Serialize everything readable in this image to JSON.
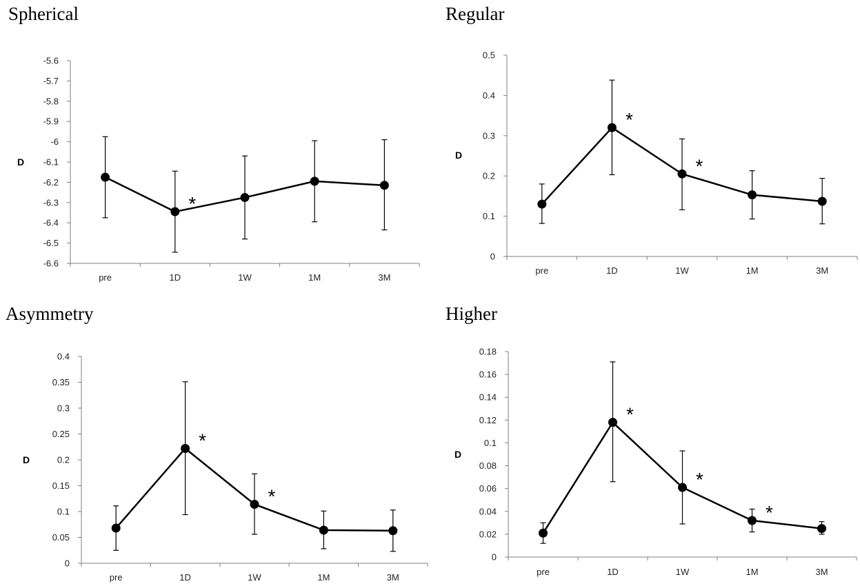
{
  "chart_data": [
    {
      "type": "line",
      "title": "Spherical",
      "ylabel": "D",
      "categories": [
        "pre",
        "1D",
        "1W",
        "1M",
        "3M"
      ],
      "values": [
        -6.175,
        -6.345,
        -6.275,
        -6.195,
        -6.215
      ],
      "error_low": [
        -6.375,
        -6.545,
        -6.48,
        -6.395,
        -6.435
      ],
      "error_high": [
        -5.975,
        -6.145,
        -6.07,
        -5.995,
        -5.99
      ],
      "significant": [
        false,
        true,
        false,
        false,
        false
      ],
      "annotation": "*",
      "ylim": [
        -6.6,
        -5.6
      ],
      "yticks": [
        "-5.6",
        "-5.7",
        "-5.8",
        "-5.9",
        "-6",
        "-6.1",
        "-6.2",
        "-6.3",
        "-6.4",
        "-6.5",
        "-6.6"
      ],
      "ytick_values": [
        -5.6,
        -5.7,
        -5.8,
        -5.9,
        -6.0,
        -6.1,
        -6.2,
        -6.3,
        -6.4,
        -6.5,
        -6.6
      ]
    },
    {
      "type": "line",
      "title": "Regular",
      "ylabel": "D",
      "categories": [
        "pre",
        "1D",
        "1W",
        "1M",
        "3M"
      ],
      "values": [
        0.13,
        0.32,
        0.205,
        0.153,
        0.137
      ],
      "error_low": [
        0.082,
        0.203,
        0.116,
        0.093,
        0.081
      ],
      "error_high": [
        0.18,
        0.438,
        0.292,
        0.213,
        0.194
      ],
      "significant": [
        false,
        true,
        true,
        false,
        false
      ],
      "annotation": "*",
      "ylim": [
        0,
        0.5
      ],
      "yticks": [
        "0",
        "0.1",
        "0.2",
        "0.3",
        "0.4",
        "0.5"
      ],
      "ytick_values": [
        0,
        0.1,
        0.2,
        0.3,
        0.4,
        0.5
      ]
    },
    {
      "type": "line",
      "title": "Asymmetry",
      "ylabel": "D",
      "categories": [
        "pre",
        "1D",
        "1W",
        "1M",
        "3M"
      ],
      "values": [
        0.068,
        0.222,
        0.114,
        0.064,
        0.063
      ],
      "error_low": [
        0.025,
        0.094,
        0.056,
        0.028,
        0.023
      ],
      "error_high": [
        0.111,
        0.351,
        0.173,
        0.101,
        0.103
      ],
      "significant": [
        false,
        true,
        true,
        false,
        false
      ],
      "annotation": "*",
      "ylim": [
        0,
        0.4
      ],
      "yticks": [
        "0",
        "0.05",
        "0.1",
        "0.15",
        "0.2",
        "0.25",
        "0.3",
        "0.35",
        "0.4"
      ],
      "ytick_values": [
        0,
        0.05,
        0.1,
        0.15,
        0.2,
        0.25,
        0.3,
        0.35,
        0.4
      ]
    },
    {
      "type": "line",
      "title": "Higher",
      "ylabel": "D",
      "categories": [
        "pre",
        "1D",
        "1W",
        "1M",
        "3M"
      ],
      "values": [
        0.021,
        0.118,
        0.061,
        0.032,
        0.025
      ],
      "error_low": [
        0.012,
        0.066,
        0.029,
        0.022,
        0.02
      ],
      "error_high": [
        0.03,
        0.171,
        0.093,
        0.042,
        0.031
      ],
      "significant": [
        false,
        true,
        true,
        true,
        false
      ],
      "annotation": "*",
      "ylim": [
        0,
        0.18
      ],
      "yticks": [
        "0",
        "0.02",
        "0.04",
        "0.06",
        "0.08",
        "0.1",
        "0.12",
        "0.14",
        "0.16",
        "0.18"
      ],
      "ytick_values": [
        0,
        0.02,
        0.04,
        0.06,
        0.08,
        0.1,
        0.12,
        0.14,
        0.16,
        0.18
      ]
    }
  ]
}
